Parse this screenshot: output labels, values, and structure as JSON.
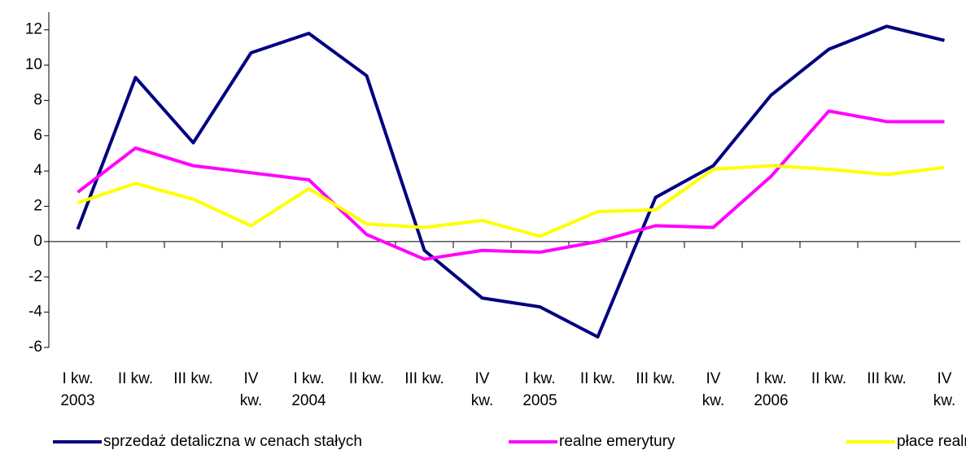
{
  "chart_data": {
    "type": "line",
    "categories": [
      [
        "I kw.",
        "2003"
      ],
      [
        "II kw."
      ],
      [
        "III kw."
      ],
      [
        "IV",
        "kw."
      ],
      [
        "I kw.",
        "2004"
      ],
      [
        "II kw."
      ],
      [
        "III kw."
      ],
      [
        "IV",
        "kw."
      ],
      [
        "I kw.",
        "2005"
      ],
      [
        "II kw."
      ],
      [
        "III kw."
      ],
      [
        "IV",
        "kw."
      ],
      [
        "I kw.",
        "2006"
      ],
      [
        "II kw."
      ],
      [
        "III kw."
      ],
      [
        "IV",
        "kw."
      ]
    ],
    "series": [
      {
        "name": "sprzedaż detaliczna w cenach stałych",
        "color": "#000080",
        "values": [
          0.7,
          9.3,
          5.6,
          10.7,
          11.8,
          9.4,
          -0.5,
          -3.2,
          -3.7,
          -5.4,
          2.5,
          4.3,
          8.3,
          10.9,
          12.2,
          11.4
        ]
      },
      {
        "name": "realne emerytury",
        "color": "#ff00ff",
        "values": [
          2.8,
          5.3,
          4.3,
          3.9,
          3.5,
          0.4,
          -1.0,
          -0.5,
          -0.6,
          0.0,
          0.9,
          0.8,
          3.7,
          7.4,
          6.8,
          6.8
        ]
      },
      {
        "name": "płace realne",
        "color": "#ffff00",
        "values": [
          2.2,
          3.3,
          2.4,
          0.9,
          3.0,
          1.0,
          0.8,
          1.2,
          0.3,
          1.7,
          1.8,
          4.1,
          4.3,
          4.1,
          3.8,
          4.2
        ]
      }
    ],
    "ylim": [
      -6,
      13
    ],
    "yticks": [
      -6,
      -4,
      -2,
      0,
      2,
      4,
      6,
      8,
      10,
      12
    ],
    "legend": "bottom"
  }
}
